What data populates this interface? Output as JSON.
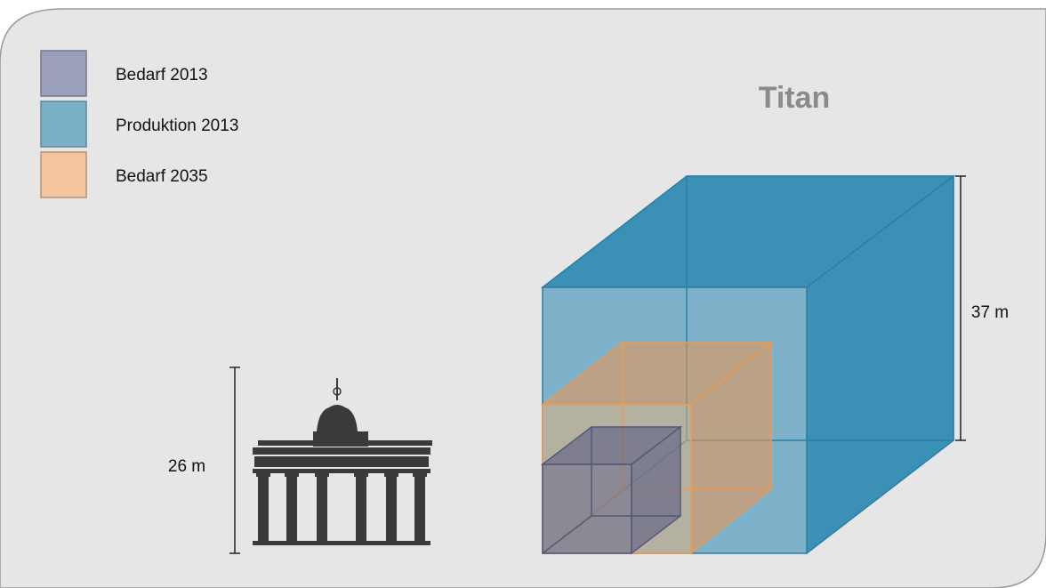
{
  "title": "Titan",
  "legend": [
    {
      "label": "Bedarf 2013",
      "color": "#9ba1bb"
    },
    {
      "label": "Produktion 2013",
      "color": "#7ab1c9"
    },
    {
      "label": "Bedarf 2035",
      "color": "#f3c49d"
    }
  ],
  "gate_height_label": "26 m",
  "cube_height_label": "37 m"
}
